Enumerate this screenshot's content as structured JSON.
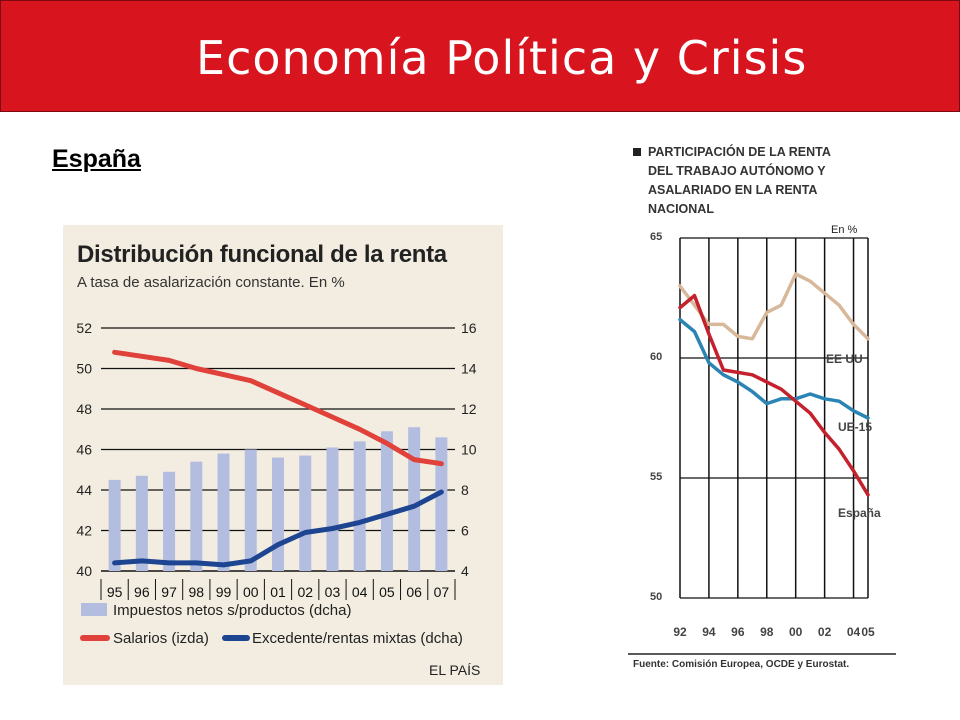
{
  "slide": {
    "title": "Economía Política y Crisis",
    "subtitle": "España",
    "accent_color": "#d8141e"
  },
  "chart_data": [
    {
      "type": "bar+line",
      "title": "Distribución funcional de la renta",
      "subtitle": "A tasa de asalarización constante. En %",
      "source": "EL PAÍS",
      "categories": [
        "95",
        "96",
        "97",
        "98",
        "99",
        "00",
        "01",
        "02",
        "03",
        "04",
        "05",
        "06",
        "07"
      ],
      "left_axis": {
        "ticks": [
          "52",
          "50",
          "48",
          "46",
          "44",
          "42",
          "40"
        ],
        "range": [
          40,
          52
        ]
      },
      "right_axis": {
        "ticks": [
          "16",
          "14",
          "12",
          "10",
          "8",
          "6",
          "4"
        ],
        "range": [
          4,
          16
        ]
      },
      "grid": true,
      "series": [
        {
          "name": "Impuestos netos s/productos (dcha)",
          "kind": "bar",
          "axis": "right",
          "color": "#b3bde0",
          "values": [
            8.5,
            8.7,
            8.9,
            9.4,
            9.8,
            10.0,
            9.6,
            9.7,
            10.1,
            10.4,
            10.9,
            11.1,
            10.6
          ]
        },
        {
          "name": "Salarios (izda)",
          "kind": "line",
          "axis": "left",
          "color": "#e0413a",
          "values": [
            50.8,
            50.6,
            50.4,
            50.0,
            49.7,
            49.4,
            48.8,
            48.2,
            47.6,
            47.0,
            46.3,
            45.5,
            45.3
          ]
        },
        {
          "name": "Excedente/rentas mixtas (dcha)",
          "kind": "line",
          "axis": "right",
          "color": "#1e4591",
          "values": [
            4.4,
            4.5,
            4.4,
            4.4,
            4.3,
            4.5,
            5.3,
            5.9,
            6.1,
            6.4,
            6.8,
            7.2,
            7.9
          ]
        }
      ]
    },
    {
      "type": "line",
      "title": "PARTICIPACIÓN DE LA RENTA DEL TRABAJO AUTÓNOMO Y ASALARIADO EN LA RENTA NACIONAL",
      "title_lines": [
        "PARTICIPACIÓN DE LA RENTA",
        "DEL TRABAJO AUTÓNOMO Y",
        "ASALARIADO EN LA RENTA",
        "NACIONAL"
      ],
      "unit": "En %",
      "source": "Fuente: Comisión Europea, OCDE y Eurostat.",
      "x": [
        1992,
        1993,
        1994,
        1995,
        1996,
        1997,
        1998,
        1999,
        2000,
        2001,
        2002,
        2003,
        2004,
        2005
      ],
      "x_ticks": [
        "92",
        "94",
        "96",
        "98",
        "00",
        "02",
        "04",
        "05"
      ],
      "y_ticks": [
        "65",
        "60",
        "55",
        "50"
      ],
      "ylim": [
        50,
        65
      ],
      "grid": true,
      "series": [
        {
          "name": "EE UU",
          "color": "#d8b89a",
          "values": [
            63.0,
            62.2,
            61.4,
            61.4,
            60.9,
            60.8,
            61.9,
            62.2,
            63.5,
            63.2,
            62.7,
            62.2,
            61.4,
            60.8
          ]
        },
        {
          "name": "UE-15",
          "color": "#2a84b4",
          "values": [
            61.6,
            61.1,
            59.8,
            59.3,
            59.0,
            58.6,
            58.1,
            58.3,
            58.3,
            58.5,
            58.3,
            58.2,
            57.8,
            57.5
          ]
        },
        {
          "name": "España",
          "color": "#c4212c",
          "values": [
            62.1,
            62.6,
            61.0,
            59.5,
            59.4,
            59.3,
            59.0,
            58.7,
            58.2,
            57.7,
            56.9,
            56.2,
            55.3,
            54.3
          ]
        }
      ]
    }
  ]
}
